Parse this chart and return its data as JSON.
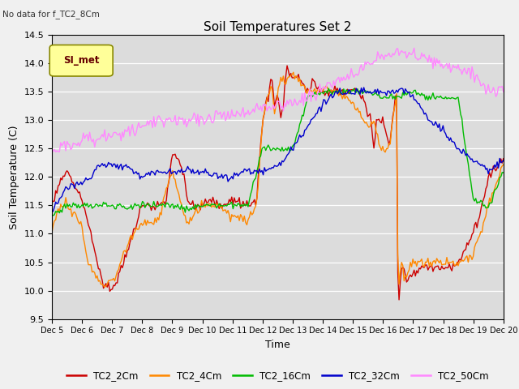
{
  "title": "Soil Temperatures Set 2",
  "annotation": "No data for f_TC2_8Cm",
  "xlabel": "Time",
  "ylabel": "Soil Temperature (C)",
  "ylim": [
    9.5,
    14.5
  ],
  "yticks": [
    9.5,
    10.0,
    10.5,
    11.0,
    11.5,
    12.0,
    12.5,
    13.0,
    13.5,
    14.0,
    14.5
  ],
  "xtick_labels": [
    "Dec 5",
    "Dec 6",
    "Dec 7",
    "Dec 8",
    "Dec 9",
    "Dec 10",
    "Dec 11",
    "Dec 12",
    "Dec 13",
    "Dec 14",
    "Dec 15",
    "Dec 16",
    "Dec 17",
    "Dec 18",
    "Dec 19",
    "Dec 20"
  ],
  "bg_color": "#dcdcdc",
  "fig_color": "#f0f0f0",
  "series_colors": [
    "#cc0000",
    "#ff8800",
    "#00bb00",
    "#0000cc",
    "#ff88ff"
  ],
  "series_labels": [
    "TC2_2Cm",
    "TC2_4Cm",
    "TC2_16Cm",
    "TC2_32Cm",
    "TC2_50Cm"
  ],
  "legend_box_facecolor": "#ffff99",
  "legend_box_edgecolor": "#888800",
  "legend_box_label": "SI_met",
  "legend_label_color": "#660000"
}
